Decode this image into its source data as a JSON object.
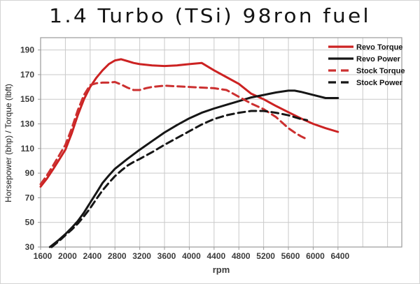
{
  "chart_data": {
    "type": "line",
    "title": "1.4 Turbo (TSi) 98ron fuel",
    "xlabel": "rpm",
    "ylabel": "Horsepower (bhp) / Torque (lbft)",
    "grid": true,
    "legend_position": "top-right",
    "colors": {
      "revo": "#cc2222",
      "stock_red": "#cc3030",
      "black": "#161616",
      "gridline": "#c9c9c9",
      "plot_border": "#9a9a9a",
      "tick_text": "#3c3c3c"
    },
    "x_axis": {
      "min": 1600,
      "max": 7430,
      "grid_step": 400,
      "grid_first": 2000,
      "grid_last": 7200,
      "tick_labels": [
        1600,
        2000,
        2400,
        2800,
        3200,
        3600,
        4000,
        4400,
        4800,
        5200,
        5600,
        6000,
        6400
      ]
    },
    "y_axis": {
      "min": 30,
      "max": 200,
      "tick_labels": [
        190,
        170,
        150,
        130,
        110,
        90,
        70,
        50,
        30
      ]
    },
    "series": [
      {
        "name": "Revo Torque",
        "color": "#cc2222",
        "style": "solid",
        "points": [
          [
            1600,
            79
          ],
          [
            1700,
            85.5
          ],
          [
            1800,
            93
          ],
          [
            1900,
            101
          ],
          [
            2000,
            109
          ],
          [
            2100,
            122
          ],
          [
            2200,
            137
          ],
          [
            2300,
            150
          ],
          [
            2400,
            160
          ],
          [
            2500,
            167.5
          ],
          [
            2600,
            173.5
          ],
          [
            2700,
            178.5
          ],
          [
            2800,
            181.5
          ],
          [
            2900,
            182.5
          ],
          [
            3000,
            181
          ],
          [
            3100,
            179.5
          ],
          [
            3200,
            178.5
          ],
          [
            3400,
            177.5
          ],
          [
            3600,
            177
          ],
          [
            3800,
            177.5
          ],
          [
            4000,
            178.5
          ],
          [
            4200,
            179.5
          ],
          [
            4400,
            173.5
          ],
          [
            4600,
            168
          ],
          [
            4800,
            162.5
          ],
          [
            5000,
            154.5
          ],
          [
            5200,
            150
          ],
          [
            5400,
            144.5
          ],
          [
            5600,
            139.5
          ],
          [
            5800,
            134.5
          ],
          [
            6000,
            130
          ],
          [
            6200,
            126.5
          ],
          [
            6400,
            123.5
          ]
        ]
      },
      {
        "name": "Revo Power",
        "color": "#161616",
        "style": "solid",
        "points": [
          [
            1750,
            30
          ],
          [
            1800,
            32
          ],
          [
            1900,
            36
          ],
          [
            2000,
            40.5
          ],
          [
            2100,
            45.5
          ],
          [
            2200,
            51
          ],
          [
            2300,
            58
          ],
          [
            2400,
            66
          ],
          [
            2500,
            74
          ],
          [
            2600,
            82
          ],
          [
            2700,
            88
          ],
          [
            2800,
            93.5
          ],
          [
            3000,
            101.5
          ],
          [
            3200,
            109
          ],
          [
            3400,
            116
          ],
          [
            3600,
            123
          ],
          [
            3800,
            129
          ],
          [
            4000,
            134.5
          ],
          [
            4200,
            139
          ],
          [
            4400,
            142.5
          ],
          [
            4600,
            145.5
          ],
          [
            4800,
            148.5
          ],
          [
            5000,
            151.5
          ],
          [
            5200,
            153.5
          ],
          [
            5400,
            155.5
          ],
          [
            5600,
            157
          ],
          [
            5700,
            157
          ],
          [
            5800,
            156
          ],
          [
            6000,
            153.5
          ],
          [
            6200,
            151
          ],
          [
            6400,
            151
          ]
        ]
      },
      {
        "name": "Stock Torque",
        "color": "#cc3030",
        "style": "dashed",
        "points": [
          [
            1600,
            81
          ],
          [
            1700,
            88
          ],
          [
            1800,
            96
          ],
          [
            1900,
            104.5
          ],
          [
            2000,
            113
          ],
          [
            2100,
            126
          ],
          [
            2200,
            141
          ],
          [
            2300,
            153.5
          ],
          [
            2400,
            161.5
          ],
          [
            2500,
            163
          ],
          [
            2600,
            163.5
          ],
          [
            2700,
            163.5
          ],
          [
            2800,
            164
          ],
          [
            2900,
            162
          ],
          [
            3000,
            159.5
          ],
          [
            3100,
            157.5
          ],
          [
            3200,
            157.5
          ],
          [
            3300,
            159
          ],
          [
            3400,
            160
          ],
          [
            3600,
            161
          ],
          [
            3800,
            160.5
          ],
          [
            4000,
            160
          ],
          [
            4200,
            159.5
          ],
          [
            4400,
            159
          ],
          [
            4600,
            157.5
          ],
          [
            4800,
            152
          ],
          [
            5000,
            146.5
          ],
          [
            5200,
            142
          ],
          [
            5400,
            135.5
          ],
          [
            5500,
            131
          ],
          [
            5600,
            126.5
          ],
          [
            5700,
            123
          ],
          [
            5800,
            120
          ],
          [
            5900,
            117.5
          ]
        ]
      },
      {
        "name": "Stock Power",
        "color": "#161616",
        "style": "dashed",
        "points": [
          [
            1780,
            30
          ],
          [
            1900,
            35
          ],
          [
            2000,
            39.5
          ],
          [
            2100,
            44
          ],
          [
            2200,
            49
          ],
          [
            2300,
            55
          ],
          [
            2400,
            61.5
          ],
          [
            2500,
            69
          ],
          [
            2600,
            76
          ],
          [
            2700,
            82
          ],
          [
            2800,
            87.5
          ],
          [
            2900,
            92
          ],
          [
            3000,
            96
          ],
          [
            3100,
            99
          ],
          [
            3200,
            101.5
          ],
          [
            3400,
            107
          ],
          [
            3600,
            113
          ],
          [
            3800,
            118.5
          ],
          [
            4000,
            124
          ],
          [
            4200,
            129.5
          ],
          [
            4400,
            134
          ],
          [
            4600,
            137
          ],
          [
            4800,
            139
          ],
          [
            5000,
            140.5
          ],
          [
            5200,
            140.5
          ],
          [
            5400,
            139
          ],
          [
            5600,
            137
          ],
          [
            5800,
            134
          ],
          [
            5900,
            133
          ]
        ]
      }
    ]
  }
}
